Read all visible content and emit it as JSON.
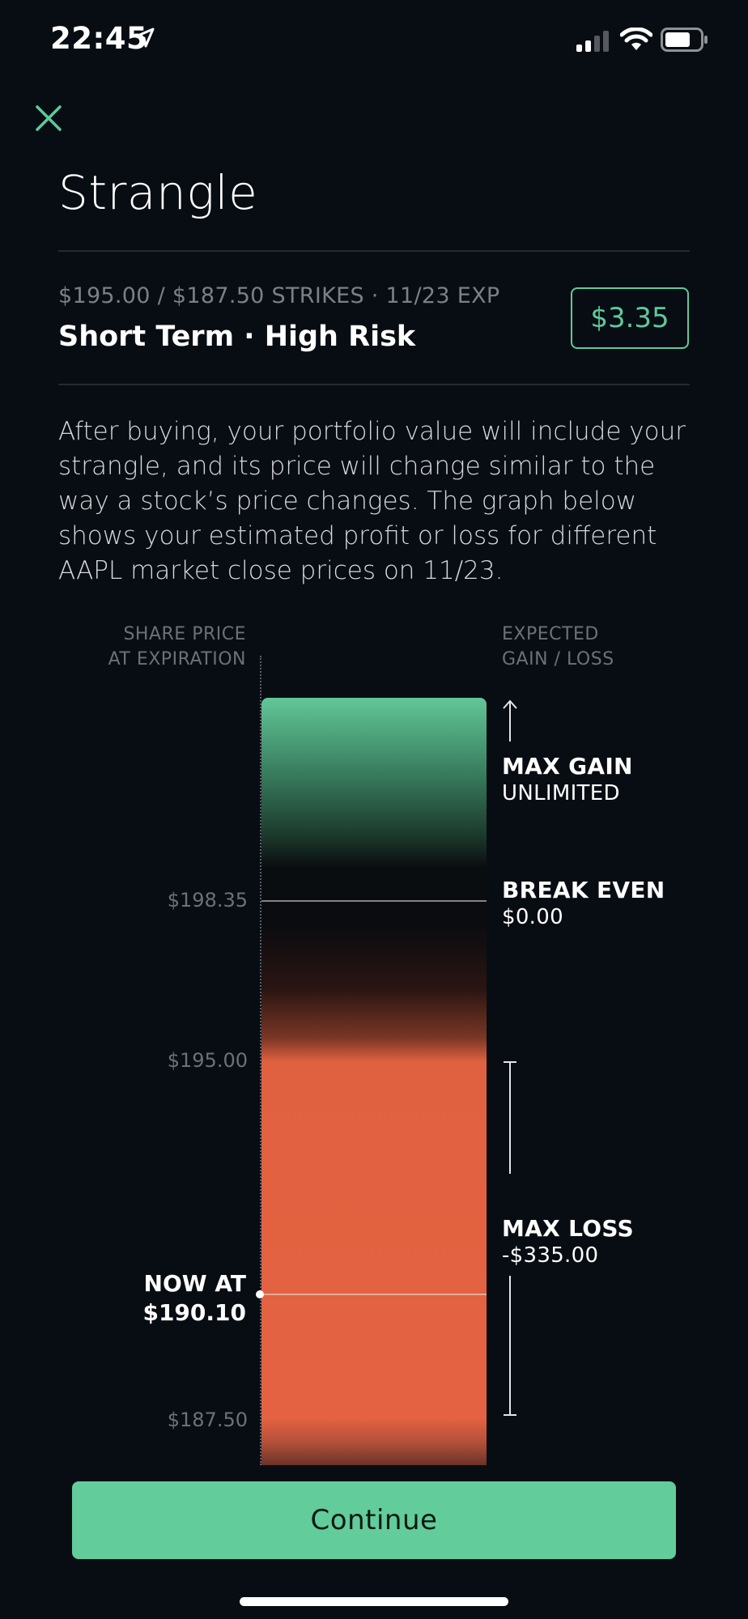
{
  "status_bar": {
    "time": "22:45"
  },
  "header": {
    "title": "Strangle"
  },
  "summary": {
    "strikes_line": "$195.00 / $187.50 STRIKES · 11/23 EXP",
    "headline": "Short Term · High Risk",
    "price": "$3.35"
  },
  "description": "After buying, your portfolio value will include your strangle, and its price will change similar to the way a stock’s price changes. The graph below shows your estimated profit or loss for different AAPL market close prices on 11/23.",
  "chart": {
    "left_header": [
      "SHARE PRICE",
      "AT EXPIRATION"
    ],
    "right_header": [
      "EXPECTED",
      "GAIN / LOSS"
    ],
    "ticks": {
      "break_even_price": "$198.35",
      "upper_strike": "$195.00",
      "lower_strike": "$187.50"
    },
    "max_gain": {
      "label": "MAX GAIN",
      "value": "UNLIMITED"
    },
    "break_even": {
      "label": "BREAK EVEN",
      "value": "$0.00"
    },
    "max_loss": {
      "label": "MAX LOSS",
      "value": "-$335.00"
    },
    "now": {
      "label": "NOW AT",
      "value": "$190.10"
    },
    "colors": {
      "gain": "#62c797",
      "loss": "#e46242",
      "accent": "#5fc99b"
    }
  },
  "footer": {
    "continue_label": "Continue"
  },
  "icons": {
    "close": "close-icon",
    "location": "location-arrow-icon",
    "signal": "cellular-signal-icon",
    "wifi": "wifi-icon",
    "battery": "battery-icon"
  }
}
